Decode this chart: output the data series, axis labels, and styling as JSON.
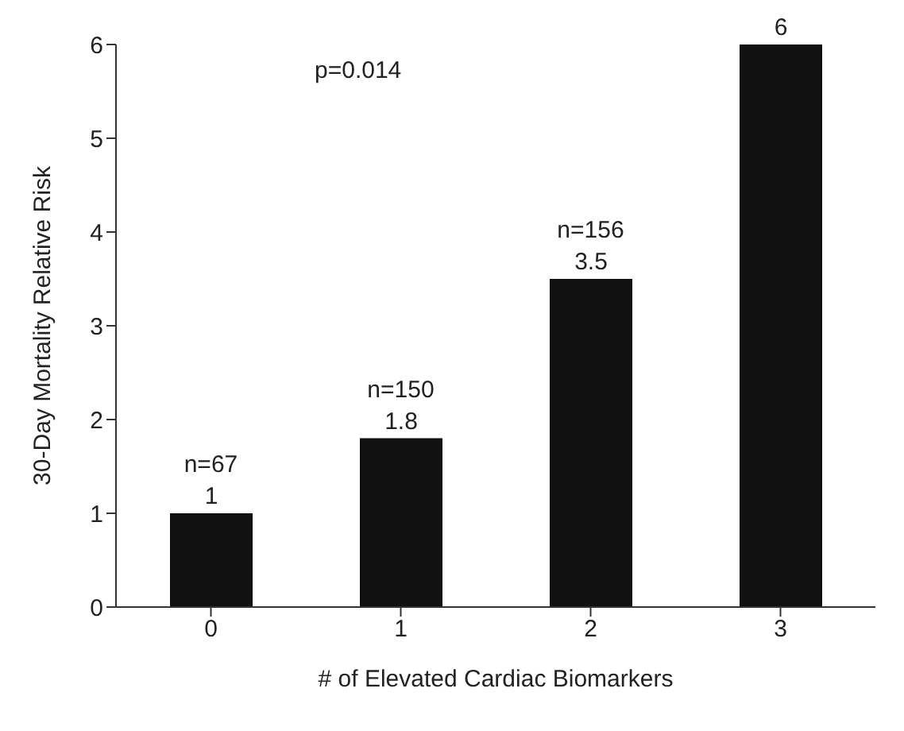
{
  "chart_data": {
    "type": "bar",
    "xlabel": "# of Elevated Cardiac Biomarkers",
    "ylabel": "30-Day Mortality Relative Risk",
    "categories": [
      "0",
      "1",
      "2",
      "3"
    ],
    "values": [
      1,
      1.8,
      3.5,
      6
    ],
    "color": "#111111",
    "data_labels": true,
    "ylim": [
      0,
      6
    ],
    "yticks": [
      0,
      1,
      2,
      3,
      4,
      5,
      6
    ],
    "grid": false,
    "annotations": [
      "p=0.014",
      {
        "text": "n=67",
        "x": "0",
        "y": 1
      },
      {
        "text": "n=150",
        "x": "1",
        "y": 1.8
      },
      {
        "text": "n=156",
        "x": "2",
        "y": 3.5
      }
    ]
  }
}
